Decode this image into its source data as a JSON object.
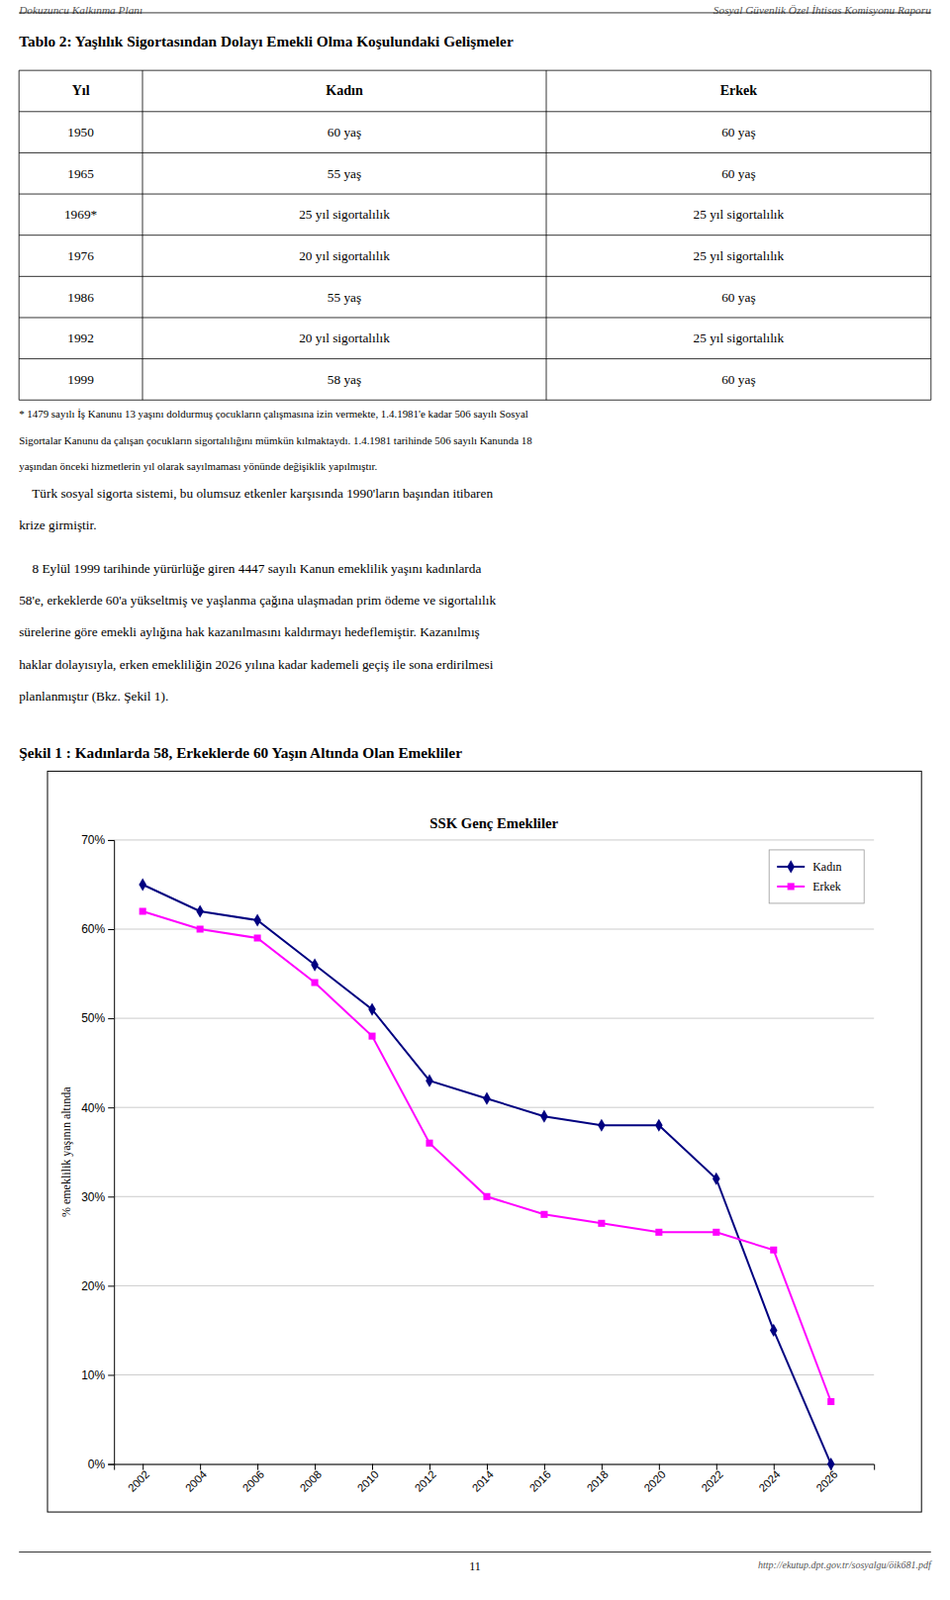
{
  "header_left": "Dokuzuncu Kalkınma Planı",
  "header_right": "Sosyal Güvenlik Özel İhtisas Komisyonu Raporu",
  "table": {
    "title": "Tablo 2: Yaşlılık Sigortasından Dolayı Emekli Olma Koşulundaki Gelişmeler",
    "headers": [
      "Yıl",
      "Kadın",
      "Erkek"
    ],
    "rows": [
      [
        "1950",
        "60 yaş",
        "60 yaş"
      ],
      [
        "1965",
        "55 yaş",
        "60 yaş"
      ],
      [
        "1969*",
        "25 yıl sigortalılık",
        "25 yıl sigortalılık"
      ],
      [
        "1976",
        "20 yıl sigortalılık",
        "25 yıl sigortalılık"
      ],
      [
        "1986",
        "55 yaş",
        "60 yaş"
      ],
      [
        "1992",
        "20 yıl sigortalılık",
        "25 yıl sigortalılık"
      ],
      [
        "1999",
        "58 yaş",
        "60 yaş"
      ]
    ],
    "footnote": [
      "* 1479 sayılı İş Kanunu 13 yaşını doldurmuş çocukların çalışmasına izin vermekte, 1.4.1981'e kadar 506 sayılı Sosyal",
      "Sigortalar Kanunu da çalışan çocukların sigortalılığını mümkün kılmaktaydı. 1.4.1981 tarihinde 506 sayılı Kanunda 18",
      "yaşından önceki hizmetlerin yıl olarak sayılmaması yönünde değişiklik yapılmıştır."
    ]
  },
  "body_text_1": [
    "    Türk sosyal sigorta sistemi, bu olumsuz etkenler karşısında 1990'ların başından itibaren",
    "krize girmiştir."
  ],
  "body_text_2": [
    "    8 Eylül 1999 tarihinde yürürlüğe giren 4447 sayılı Kanun emeklilik yaşını kadınlarda",
    "58'e, erkeklerde 60'a yükseltmiş ve yaşlanma çağına ulaşmadan prim ödeme ve sigortalılık",
    "sürelerine göre emekli aylığına hak kazanılmasını kaldırmayı hedeflemiştir. Kazanılmış",
    "haklar dolayısıyla, erken emekliliğin 2026 yılına kadar kademeli geçiş ile sona erdirilmesi",
    "planlanmıştır (Bkz. Şekil 1)."
  ],
  "figure_title": "Şekil 1 : Kadınlarda 58, Erkeklerde 60 Yaşın Altında Olan Emekliler",
  "page_number": "11",
  "page_url": "http://ekutup.dpt.gov.tr/sosyalgu/öik681.pdf",
  "chart_data": {
    "type": "line",
    "title": "SSK Genç Emekliler",
    "y_label": "% emeklilik yaşının altında",
    "x": [
      2002,
      2004,
      2006,
      2008,
      2010,
      2012,
      2014,
      2016,
      2018,
      2020,
      2022,
      2024,
      2026
    ],
    "series": [
      {
        "name": "Kadın",
        "color": "#000080",
        "marker": "diamond",
        "values": [
          65,
          62,
          61,
          56,
          51,
          43,
          41,
          39,
          38,
          38,
          32,
          15,
          0
        ]
      },
      {
        "name": "Erkek",
        "color": "#FF00FF",
        "marker": "square",
        "values": [
          62,
          60,
          59,
          54,
          48,
          36,
          30,
          28,
          27,
          26,
          26,
          24,
          7
        ]
      }
    ],
    "xlim": [
      2001,
      2027.5
    ],
    "xticks": [
      2002,
      2004,
      2006,
      2008,
      2010,
      2012,
      2014,
      2016,
      2018,
      2020,
      2022,
      2024,
      2026
    ],
    "ylim": [
      0,
      70
    ],
    "yticks": [
      {
        "value": 0,
        "label": "0%"
      },
      {
        "value": 10,
        "label": "10%"
      },
      {
        "value": 20,
        "label": "20%"
      },
      {
        "value": 30,
        "label": "30%"
      },
      {
        "value": 40,
        "label": "40%"
      },
      {
        "value": 50,
        "label": "50%"
      },
      {
        "value": 60,
        "label": "60%"
      },
      {
        "value": 70,
        "label": "70%"
      }
    ],
    "grid": true,
    "legend": "upper right"
  }
}
